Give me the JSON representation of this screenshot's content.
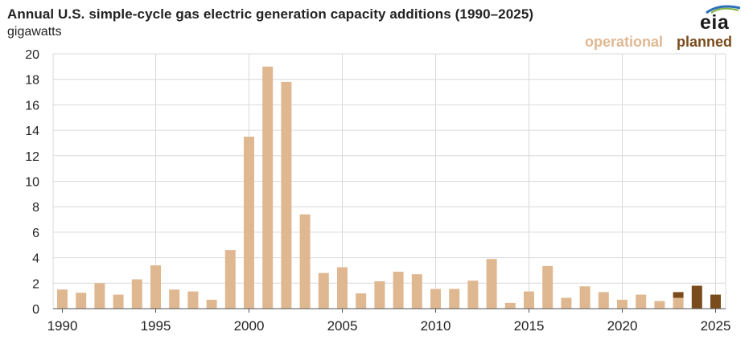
{
  "title": "Annual U.S. simple-cycle gas electric generation capacity additions (1990–2025)",
  "unit_label": "gigawatts",
  "logo": {
    "text": "eia",
    "name": "eia-logo"
  },
  "legend": [
    {
      "label": "operational",
      "color": "#dfb891"
    },
    {
      "label": "planned",
      "color": "#7a4b1c"
    }
  ],
  "chart_data": {
    "type": "bar",
    "stacked": true,
    "categories": [
      1990,
      1991,
      1992,
      1993,
      1994,
      1995,
      1996,
      1997,
      1998,
      1999,
      2000,
      2001,
      2002,
      2003,
      2004,
      2005,
      2006,
      2007,
      2008,
      2009,
      2010,
      2011,
      2012,
      2013,
      2014,
      2015,
      2016,
      2017,
      2018,
      2019,
      2020,
      2021,
      2022,
      2023,
      2024,
      2025
    ],
    "series": [
      {
        "name": "operational",
        "color": "#dfb891",
        "values": [
          1.5,
          1.25,
          2.0,
          1.1,
          2.3,
          3.4,
          1.5,
          1.35,
          0.7,
          4.6,
          13.5,
          19.0,
          17.8,
          7.4,
          2.8,
          3.25,
          1.2,
          2.15,
          2.9,
          2.7,
          1.55,
          1.55,
          2.2,
          3.9,
          0.45,
          1.35,
          3.35,
          0.85,
          1.75,
          1.3,
          0.7,
          1.1,
          0.6,
          0.85,
          0,
          0
        ]
      },
      {
        "name": "planned",
        "color": "#7a4b1c",
        "values": [
          0,
          0,
          0,
          0,
          0,
          0,
          0,
          0,
          0,
          0,
          0,
          0,
          0,
          0,
          0,
          0,
          0,
          0,
          0,
          0,
          0,
          0,
          0,
          0,
          0,
          0,
          0,
          0,
          0,
          0,
          0,
          0,
          0,
          0.45,
          1.8,
          1.1
        ]
      }
    ],
    "ylim": [
      0,
      20
    ],
    "yticks": [
      "0",
      "2",
      "4",
      "6",
      "8",
      "10",
      "12",
      "14",
      "16",
      "18",
      "20"
    ],
    "xticks": [
      "1990",
      "1995",
      "2000",
      "2005",
      "2010",
      "2015",
      "2020",
      "2025"
    ],
    "grid": true,
    "legend_position": "top-right"
  }
}
